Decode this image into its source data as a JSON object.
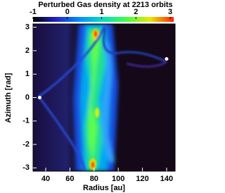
{
  "chart_data": {
    "type": "heatmap",
    "title": "Perturbed Gas density at 2213 orbits",
    "xlabel": "Radius [au]",
    "ylabel": "Azimuth [rad]",
    "xlim": [
      29.5,
      147
    ],
    "xticks": [
      40,
      60,
      80,
      100,
      120,
      140
    ],
    "ylim": [
      -3.14,
      3.14
    ],
    "yticks": [
      -3,
      -2,
      -1,
      0,
      1,
      2,
      3
    ],
    "colorbar": {
      "lim": [
        -1,
        3.1
      ],
      "ticks": [
        -1,
        0,
        1,
        2,
        3
      ],
      "colors": [
        "#000000",
        "#2424c8",
        "#0090ff",
        "#00e0c0",
        "#40ff40",
        "#e8e800",
        "#ff2000"
      ]
    },
    "series": [
      {
        "type": "scatter",
        "color": "#ffffff",
        "x": [
          35,
          140
        ],
        "y": [
          0,
          1.65
        ]
      }
    ]
  }
}
